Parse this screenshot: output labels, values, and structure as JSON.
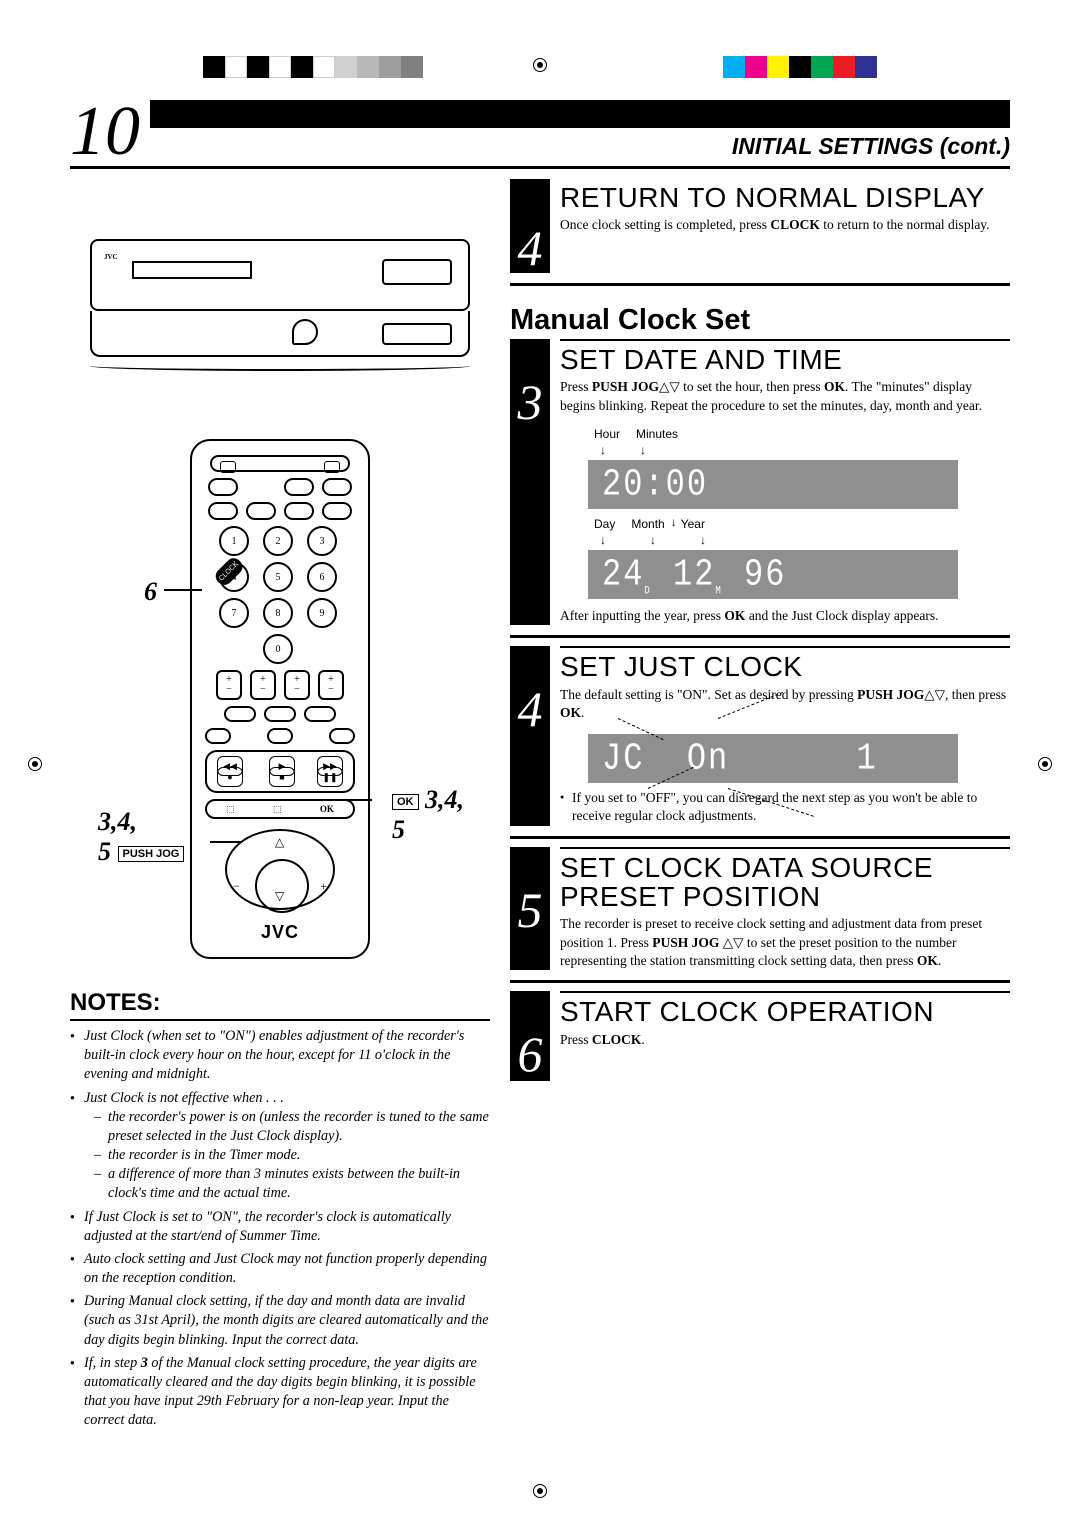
{
  "page_number": "10",
  "header_title": "INITIAL SETTINGS (cont.)",
  "color_bars": {
    "left": [
      "#000000",
      "#ffffff",
      "#000000",
      "#ffffff",
      "#000000",
      "#ffffff",
      "#000000"
    ],
    "left_gray": [
      "#bfbfbf",
      "#a6a6a6",
      "#8c8c8c",
      "#737373"
    ],
    "right": [
      "#00aeef",
      "#ec008c",
      "#fff200",
      "#000000",
      "#00a651",
      "#ed1c24",
      "#2e3192"
    ]
  },
  "remote": {
    "numpad": [
      "1",
      "2",
      "3",
      "4",
      "5",
      "6",
      "7",
      "8",
      "9",
      "0"
    ],
    "logo": "JVC",
    "labels": {
      "left6": "6",
      "left345": "3,4,\n5",
      "left345_box": "PUSH JOG",
      "right345": "3,4,\n5",
      "right_ok": "OK",
      "clock_tag": "CLOCK"
    }
  },
  "notes": {
    "heading": "NOTES:",
    "items": [
      {
        "text": "Just Clock (when set to \"ON\") enables adjustment of the recorder's built-in clock every hour on the hour, except for 11 o'clock in the evening and midnight."
      },
      {
        "text": "Just Clock is not effective when . . .",
        "sub": [
          "the recorder's power is on (unless the recorder is tuned to the same preset selected in the Just Clock display).",
          "the recorder is in the Timer mode.",
          "a difference of more than 3 minutes exists between the built-in clock's time and the actual time."
        ]
      },
      {
        "text": "If Just Clock is set to \"ON\", the recorder's clock is automatically adjusted at the start/end of Summer Time."
      },
      {
        "text": "Auto clock setting and Just Clock may not function properly depending on the reception condition."
      },
      {
        "text": "During Manual clock setting, if the day and month data are invalid (such as 31st April), the month digits are cleared automatically and the day digits begin blinking. Input the correct data."
      },
      {
        "text_html": "If, in step <b>3</b> of the Manual clock setting procedure, the year digits are automatically cleared and the day digits begin blinking, it is possible that you have input 29th February for a non-leap year. Input the correct data."
      }
    ]
  },
  "steps": {
    "return_normal": {
      "num": "4",
      "title": "RETURN TO NORMAL DISPLAY",
      "text": "Once clock setting is completed, press <b>CLOCK</b> to return to the normal display."
    },
    "section": "Manual Clock Set",
    "set_date_time": {
      "num": "3",
      "title": "SET DATE AND TIME",
      "text": "Press <b>PUSH JOG</b>△▽ to set the hour, then press <b>OK</b>. The \"minutes\" display begins blinking. Repeat the procedure to set the minutes, day, month and year.",
      "lcd1_labels": [
        "Hour",
        "Minutes"
      ],
      "lcd1": "20:00",
      "lcd2_labels": [
        "Day",
        "Month",
        "Year"
      ],
      "lcd2": "24. 12. 96",
      "after_text": "After inputting the year, press <b>OK</b> and the Just Clock display appears."
    },
    "set_just_clock": {
      "num": "4",
      "title": "SET JUST CLOCK",
      "text": "The default setting is \"ON\". Set as desired by pressing <b>PUSH JOG</b>△▽, then press <b>OK</b>.",
      "lcd": "JC  On      1",
      "bullet": "If you set to \"OFF\", you can disregard the next step as you won't be able to receive regular clock adjustments."
    },
    "set_preset": {
      "num": "5",
      "title": "SET CLOCK DATA SOURCE PRESET POSITION",
      "text": "The recorder is preset to receive clock setting and adjustment data from preset position 1. Press <b>PUSH JOG</b> △▽ to set the preset position to the number representing the station transmitting clock setting data, then press <b>OK</b>."
    },
    "start_clock": {
      "num": "6",
      "title": "START CLOCK OPERATION",
      "text": "Press <b>CLOCK</b>."
    }
  }
}
